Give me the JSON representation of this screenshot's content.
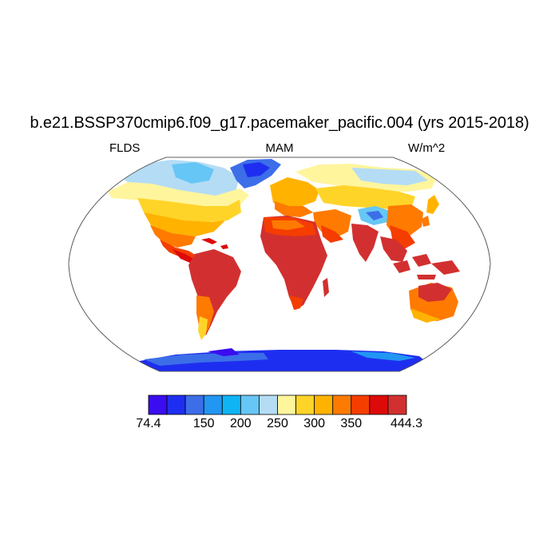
{
  "header": {
    "title": "b.e21.BSSP370cmip6.f09_g17.pacemaker_pacific.004 (yrs 2015-2018)",
    "variable": "FLDS",
    "season": "MAM",
    "units": "W/m^2"
  },
  "map": {
    "projection": "Robinson",
    "background": "#ffffff",
    "outline_color": "#555555"
  },
  "colorbar": {
    "colors": [
      "#3a0cf0",
      "#1e2ef0",
      "#3c6ee8",
      "#2196f3",
      "#0fb4f5",
      "#66c6f5",
      "#b4dcf5",
      "#fff59d",
      "#ffd429",
      "#ffb300",
      "#ff7a00",
      "#f53d00",
      "#dd0a0a",
      "#d23030"
    ],
    "labels": [
      {
        "slot": 0,
        "text": "74.4"
      },
      {
        "slot": 3,
        "text": "150"
      },
      {
        "slot": 5,
        "text": "200"
      },
      {
        "slot": 7,
        "text": "250"
      },
      {
        "slot": 9,
        "text": "300"
      },
      {
        "slot": 11,
        "text": "350"
      },
      {
        "slot": 14,
        "text": "444.3"
      }
    ]
  }
}
